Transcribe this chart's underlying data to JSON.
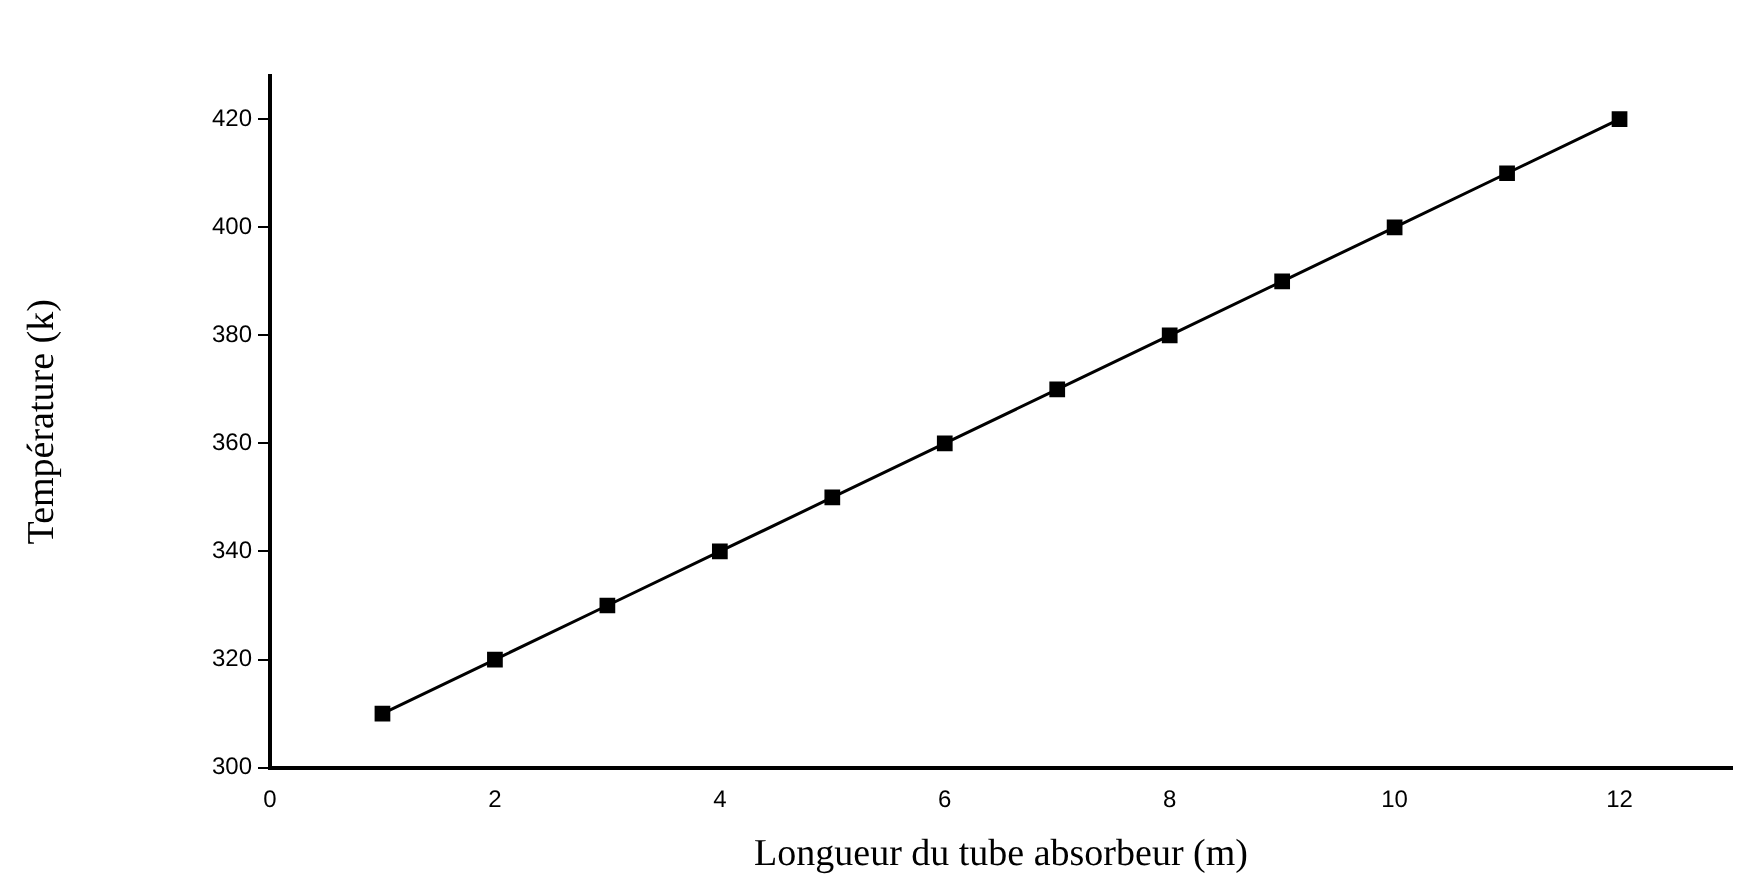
{
  "chart_data": {
    "type": "line",
    "xlabel": "Longueur du tube absorbeur (m)",
    "ylabel": "Température (k)",
    "x": [
      1,
      2,
      3,
      4,
      5,
      6,
      7,
      8,
      9,
      10,
      11,
      12
    ],
    "series": [
      {
        "color": "#000000",
        "values": [
          310,
          320,
          330,
          340,
          350,
          360,
          370,
          380,
          390,
          400,
          410,
          420
        ]
      }
    ],
    "xlim": [
      0,
      13
    ],
    "xticks": [
      0,
      2,
      4,
      6,
      8,
      10,
      12
    ],
    "ylim": [
      300,
      428
    ],
    "yticks": [
      300,
      320,
      340,
      360,
      380,
      400,
      420
    ],
    "grid": false,
    "legend": false,
    "marker": "square",
    "line_style": "solid"
  }
}
